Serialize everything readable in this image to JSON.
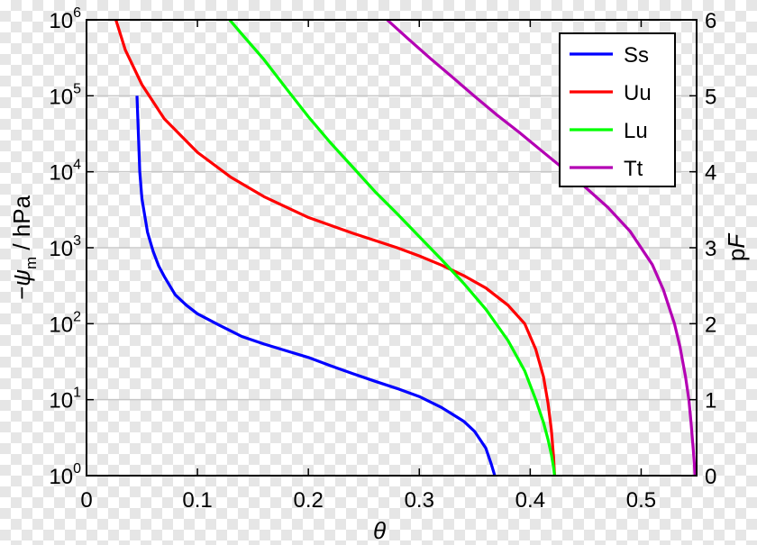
{
  "chart_data": {
    "type": "line",
    "xlabel": "θ",
    "ylabel": "−ψ_m / hPa",
    "ylabel_parts": {
      "minus_psi": "−ψ",
      "subscript": "m",
      "unit": " / hPa"
    },
    "y2label": "pF",
    "y2label_parts": {
      "p": "p",
      "F": "F"
    },
    "xlim": [
      0,
      0.55
    ],
    "ylim": [
      1,
      1000000
    ],
    "yscale": "log",
    "y2lim": [
      0,
      6
    ],
    "grid": "horizontal",
    "legend_position": "top-right",
    "x_ticks": [
      "0",
      "0.1",
      "0.2",
      "0.3",
      "0.4",
      "0.5"
    ],
    "y_ticks": [
      {
        "base": "10",
        "exp": "0"
      },
      {
        "base": "10",
        "exp": "1"
      },
      {
        "base": "10",
        "exp": "2"
      },
      {
        "base": "10",
        "exp": "3"
      },
      {
        "base": "10",
        "exp": "4"
      },
      {
        "base": "10",
        "exp": "5"
      },
      {
        "base": "10",
        "exp": "6"
      }
    ],
    "y2_ticks": [
      "0",
      "1",
      "2",
      "3",
      "4",
      "5",
      "6"
    ],
    "series": [
      {
        "name": "Ss",
        "color": "#0000ff",
        "x": [
          0.0455,
          0.048,
          0.05,
          0.055,
          0.06,
          0.065,
          0.07,
          0.08,
          0.09,
          0.1,
          0.12,
          0.14,
          0.16,
          0.18,
          0.2,
          0.22,
          0.24,
          0.26,
          0.28,
          0.3,
          0.32,
          0.34,
          0.35,
          0.36,
          0.365,
          0.368
        ],
        "y": [
          100000,
          10000,
          4400,
          1600,
          900,
          580,
          420,
          240,
          175,
          135,
          95,
          68,
          54,
          44,
          36,
          28,
          22,
          17.5,
          14,
          11,
          7.9,
          5.2,
          3.8,
          2.3,
          1.4,
          1
        ]
      },
      {
        "name": "Uu",
        "color": "#ff0000",
        "x": [
          0.0265,
          0.035,
          0.05,
          0.07,
          0.1,
          0.13,
          0.16,
          0.2,
          0.24,
          0.28,
          0.3,
          0.32,
          0.34,
          0.36,
          0.38,
          0.395,
          0.405,
          0.412,
          0.416,
          0.419,
          0.421,
          0.422
        ],
        "y": [
          1000000,
          400000,
          140000,
          50000,
          18000,
          8500,
          4700,
          2500,
          1550,
          1000,
          780,
          590,
          430,
          295,
          175,
          100,
          46,
          20,
          9,
          4,
          1.8,
          1
        ]
      },
      {
        "name": "Lu",
        "color": "#00ff00",
        "x": [
          0.129,
          0.14,
          0.16,
          0.18,
          0.2,
          0.22,
          0.24,
          0.26,
          0.28,
          0.3,
          0.32,
          0.34,
          0.36,
          0.38,
          0.395,
          0.405,
          0.412,
          0.416,
          0.419,
          0.421,
          0.422
        ],
        "y": [
          1000000,
          650000,
          300000,
          125000,
          53000,
          24000,
          11500,
          5500,
          2800,
          1400,
          700,
          340,
          155,
          60,
          24,
          10,
          5,
          3,
          1.9,
          1.3,
          1
        ]
      },
      {
        "name": "Tt",
        "color": "#b400b4",
        "x": [
          0.271,
          0.29,
          0.31,
          0.33,
          0.35,
          0.37,
          0.39,
          0.41,
          0.43,
          0.45,
          0.47,
          0.49,
          0.51,
          0.52,
          0.53,
          0.535,
          0.54,
          0.543,
          0.545,
          0.547,
          0.548,
          0.5485
        ],
        "y": [
          1000000,
          560000,
          310000,
          175000,
          98000,
          56000,
          33000,
          19000,
          11000,
          6200,
          3400,
          1650,
          600,
          280,
          100,
          50,
          20,
          10,
          5,
          2.2,
          1.4,
          1
        ]
      }
    ]
  }
}
